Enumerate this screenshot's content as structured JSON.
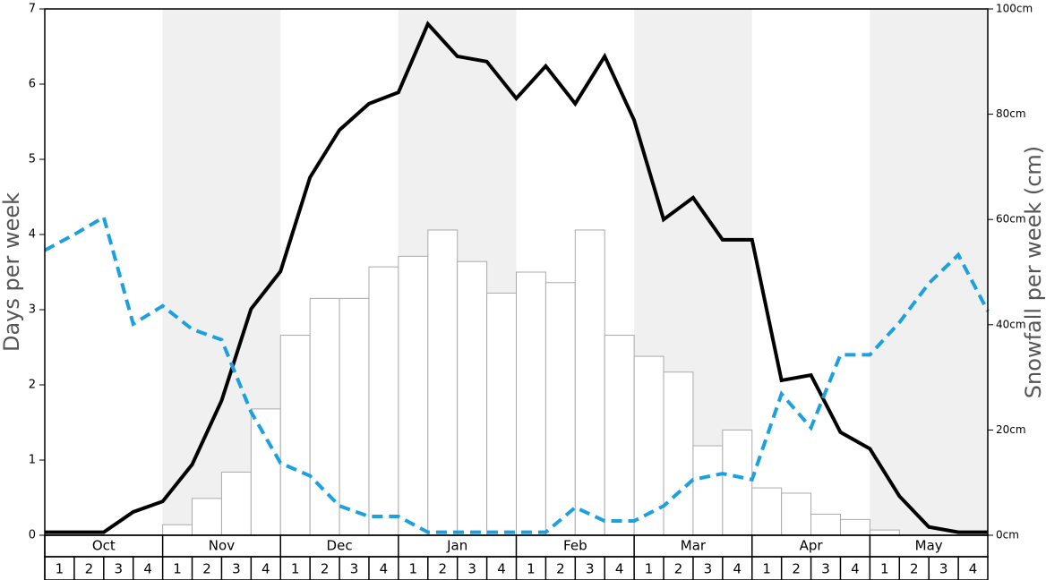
{
  "chart_data": {
    "type": "bar",
    "ylabel": "Days per week",
    "y2label": "Snowfall per week (cm)",
    "months": [
      "Oct",
      "Nov",
      "Dec",
      "Jan",
      "Feb",
      "Mar",
      "Apr",
      "May"
    ],
    "week_labels": [
      "1",
      "2",
      "3",
      "4"
    ],
    "xlim": [
      0,
      32
    ],
    "ylim": [
      0,
      7
    ],
    "yticks": [
      0,
      1,
      2,
      3,
      4,
      5,
      6,
      7
    ],
    "y2lim": [
      0,
      100
    ],
    "y2ticks": [
      {
        "value": 0,
        "label": "0cm"
      },
      {
        "value": 20,
        "label": "20cm"
      },
      {
        "value": 40,
        "label": "40cm"
      },
      {
        "value": 60,
        "label": "60cm"
      },
      {
        "value": 80,
        "label": "80cm"
      },
      {
        "value": 100,
        "label": "100cm"
      }
    ],
    "shading_color": "#f0f0f0",
    "series": [
      {
        "type": "bar",
        "axis": "y2",
        "color": "#ffffff",
        "edge_color": "#aaaaaa",
        "values": [
          0,
          0,
          0,
          0,
          2,
          7,
          12,
          24,
          38,
          45,
          45,
          51,
          53,
          58,
          52,
          46,
          50,
          48,
          58,
          38,
          34,
          31,
          17,
          20,
          9,
          8,
          4,
          3,
          1,
          0,
          0,
          0
        ]
      },
      {
        "type": "line",
        "color": "#000000",
        "dashed": false,
        "x": [
          0,
          1,
          2,
          3,
          4,
          5,
          6,
          7,
          8,
          9,
          10,
          11,
          12,
          13,
          14,
          15,
          16,
          17,
          18,
          19,
          20,
          21,
          22,
          23,
          24,
          25,
          26,
          27,
          28,
          29,
          30,
          31,
          32
        ],
        "values": [
          0.04,
          0.04,
          0.04,
          0.31,
          0.45,
          0.94,
          1.79,
          3.01,
          3.51,
          4.76,
          5.39,
          5.74,
          5.89,
          6.8,
          6.37,
          6.3,
          5.81,
          6.24,
          5.74,
          6.37,
          5.52,
          4.2,
          4.49,
          3.93,
          3.93,
          2.06,
          2.13,
          1.37,
          1.15,
          0.52,
          0.11,
          0.04,
          0.04
        ]
      },
      {
        "type": "line",
        "color": "#1ca0e0",
        "dashed": true,
        "x": [
          0,
          1,
          2,
          3,
          4,
          5,
          6,
          7,
          8,
          9,
          10,
          11,
          12,
          13,
          14,
          15,
          16,
          17,
          18,
          19,
          20,
          21,
          22,
          23,
          24,
          25,
          26,
          27,
          28,
          29,
          30,
          31,
          32
        ],
        "values": [
          3.79,
          4.0,
          4.23,
          2.81,
          3.05,
          2.74,
          2.6,
          1.64,
          0.96,
          0.79,
          0.39,
          0.25,
          0.25,
          0.04,
          0.04,
          0.04,
          0.04,
          0.04,
          0.37,
          0.19,
          0.19,
          0.39,
          0.74,
          0.82,
          0.74,
          1.88,
          1.43,
          2.4,
          2.4,
          2.83,
          3.35,
          3.73,
          2.98
        ]
      }
    ]
  }
}
